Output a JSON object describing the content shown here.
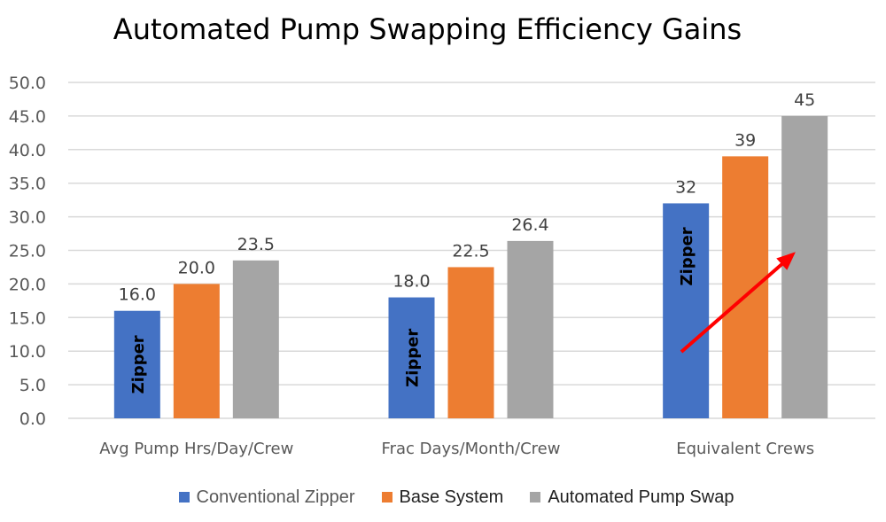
{
  "chart_data": {
    "type": "bar",
    "title": "Automated Pump Swapping Efficiency Gains",
    "categories": [
      "Avg Pump Hrs/Day/Crew",
      "Frac Days/Month/Crew",
      "Equivalent Crews"
    ],
    "series": [
      {
        "name": "Conventional Zipper",
        "values": [
          16.0,
          18.0,
          32
        ],
        "labels": [
          "16.0",
          "18.0",
          "32"
        ],
        "color": "#4472C4",
        "bar_text": "Zipper"
      },
      {
        "name": "Base System",
        "values": [
          20.0,
          22.5,
          39
        ],
        "labels": [
          "20.0",
          "22.5",
          "39"
        ],
        "color": "#ED7D31"
      },
      {
        "name": "Automated Pump Swap",
        "values": [
          23.5,
          26.4,
          45
        ],
        "labels": [
          "23.5",
          "26.4",
          "45"
        ],
        "color": "#A5A5A5"
      }
    ],
    "yticks": [
      "0.0",
      "5.0",
      "10.0",
      "15.0",
      "20.0",
      "25.0",
      "30.0",
      "35.0",
      "40.0",
      "45.0",
      "50.0"
    ],
    "ylim": [
      0,
      50
    ],
    "grid": true,
    "legend": "bottom",
    "annotation": {
      "type": "arrow",
      "color": "#FF0000",
      "category": "Equivalent Crews"
    }
  }
}
